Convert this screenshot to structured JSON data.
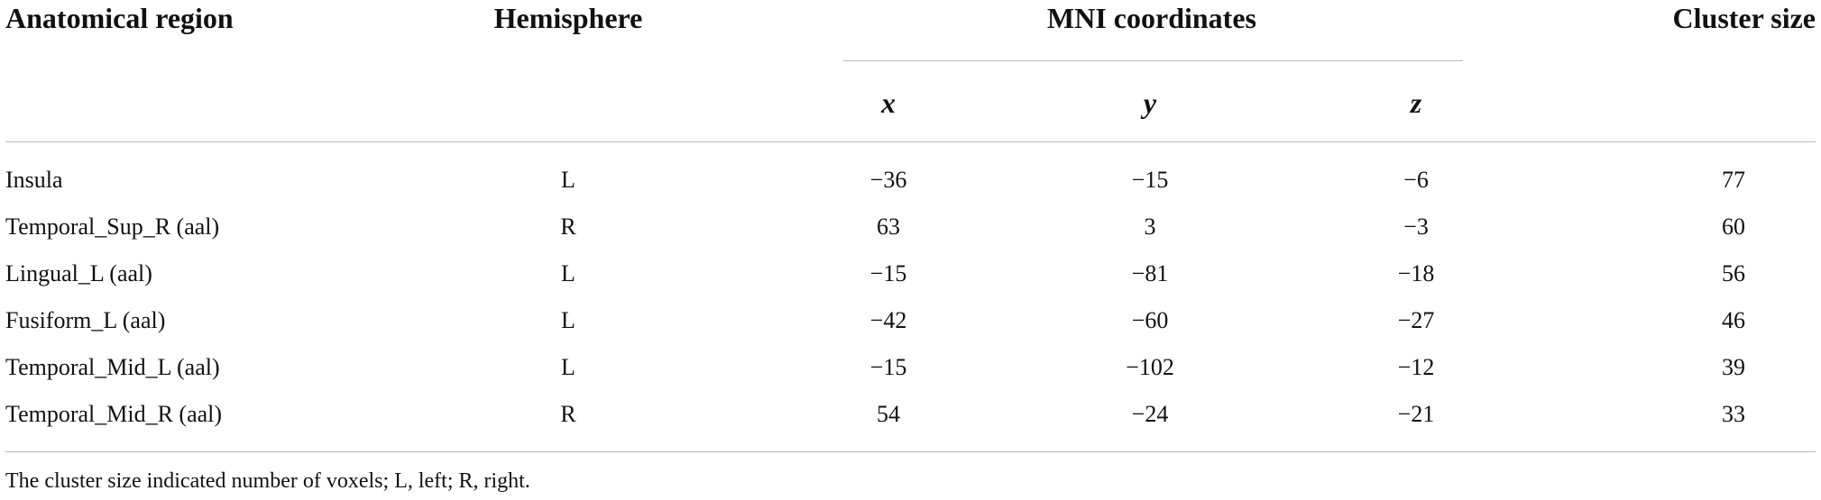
{
  "table": {
    "headers": {
      "region": "Anatomical region",
      "hemisphere": "Hemisphere",
      "mni": "MNI coordinates",
      "cluster": "Cluster size"
    },
    "subheaders": [
      "x",
      "y",
      "z"
    ],
    "rows": [
      {
        "region": "Insula",
        "hemisphere": "L",
        "x": "−36",
        "y": "−15",
        "z": "−6",
        "cluster": "77"
      },
      {
        "region": "Temporal_Sup_R (aal)",
        "hemisphere": "R",
        "x": "63",
        "y": "3",
        "z": "−3",
        "cluster": "60"
      },
      {
        "region": "Lingual_L (aal)",
        "hemisphere": "L",
        "x": "−15",
        "y": "−81",
        "z": "−18",
        "cluster": "56"
      },
      {
        "region": "Fusiform_L (aal)",
        "hemisphere": "L",
        "x": "−42",
        "y": "−60",
        "z": "−27",
        "cluster": "46"
      },
      {
        "region": "Temporal_Mid_L (aal)",
        "hemisphere": "L",
        "x": "−15",
        "y": "−102",
        "z": "−12",
        "cluster": "39"
      },
      {
        "region": "Temporal_Mid_R (aal)",
        "hemisphere": "R",
        "x": "54",
        "y": "−24",
        "z": "−21",
        "cluster": "33"
      }
    ],
    "footnote": "The cluster size indicated number of voxels; L, left; R, right."
  }
}
